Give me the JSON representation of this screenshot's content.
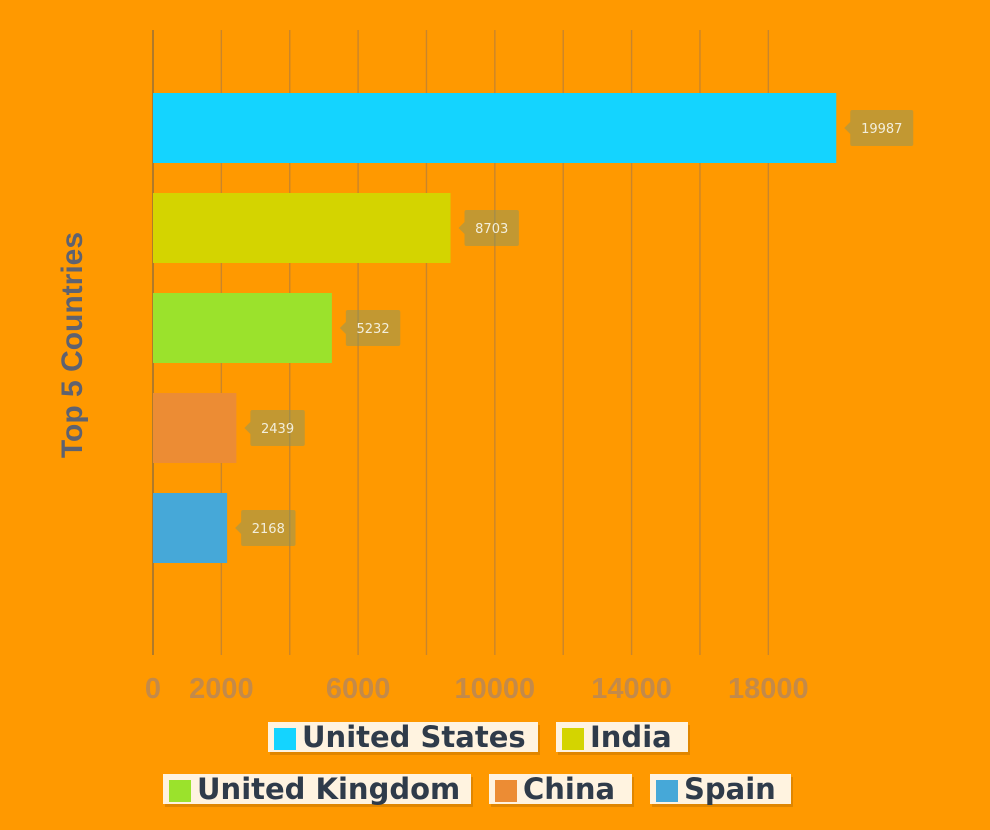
{
  "chart_data": {
    "type": "bar",
    "orientation": "horizontal",
    "ylabel": "Top 5 Countries",
    "xlabel": "",
    "xlim": [
      0,
      20000
    ],
    "x_ticks": [
      0,
      2000,
      6000,
      10000,
      14000,
      18000
    ],
    "grid": true,
    "legend_position": "bottom",
    "categories": [
      "United States",
      "India",
      "United Kingdom",
      "China",
      "Spain"
    ],
    "values": [
      19987,
      8703,
      5232,
      2439,
      2168
    ],
    "colors": [
      "#14D4FF",
      "#D4D400",
      "#9BE22C",
      "#EC8C34",
      "#46A8D8"
    ]
  }
}
